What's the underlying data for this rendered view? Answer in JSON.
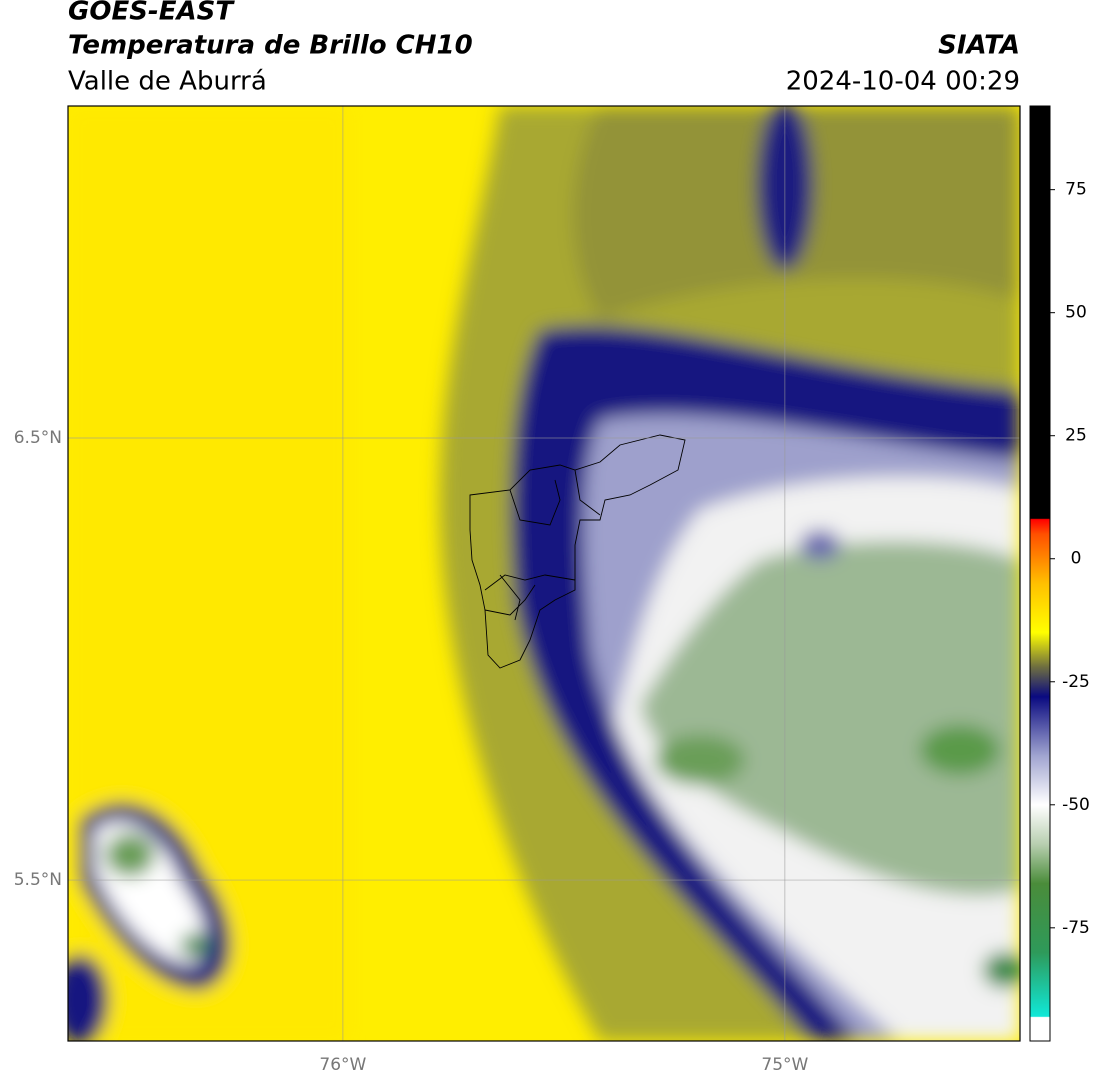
{
  "header": {
    "title": "GOES-EAST",
    "subtitle": "Temperatura de Brillo CH10",
    "region": "Valle de Aburrá",
    "source": "SIATA",
    "datetime": "2024-10-04 00:29"
  },
  "map": {
    "lon_range": [
      -76.622,
      -74.468
    ],
    "lat_range": [
      5.136,
      7.251
    ],
    "lon_ticks": [
      {
        "value": -76,
        "label": "76°W"
      },
      {
        "value": -75,
        "label": "75°W"
      }
    ],
    "lat_ticks": [
      {
        "value": 6.5,
        "label": "6.5°N"
      },
      {
        "value": 5.5,
        "label": "5.5°N"
      }
    ],
    "grid": true
  },
  "colorbar": {
    "lim": [
      -98,
      92
    ],
    "ticks": [
      75,
      50,
      25,
      0,
      -25,
      -50,
      -75
    ],
    "colormap": [
      {
        "value": -98,
        "color": "#ffffff"
      },
      {
        "value": -93.2,
        "color": "#ffffff"
      },
      {
        "value": -93,
        "color": "#10e8d8"
      },
      {
        "value": -80,
        "color": "#2e9a5a"
      },
      {
        "value": -66,
        "color": "#4a8c3a"
      },
      {
        "value": -58,
        "color": "#b8cfb0"
      },
      {
        "value": -50,
        "color": "#ffffff"
      },
      {
        "value": -40,
        "color": "#a0a4d0"
      },
      {
        "value": -28,
        "color": "#0a0a80"
      },
      {
        "value": -22,
        "color": "#6e6e40"
      },
      {
        "value": -15,
        "color": "#ffff00"
      },
      {
        "value": -5,
        "color": "#ffc000"
      },
      {
        "value": 5,
        "color": "#ff5000"
      },
      {
        "value": 8,
        "color": "#ff0000"
      },
      {
        "value": 8.2,
        "color": "#000000"
      },
      {
        "value": 92,
        "color": "#000000"
      }
    ]
  }
}
